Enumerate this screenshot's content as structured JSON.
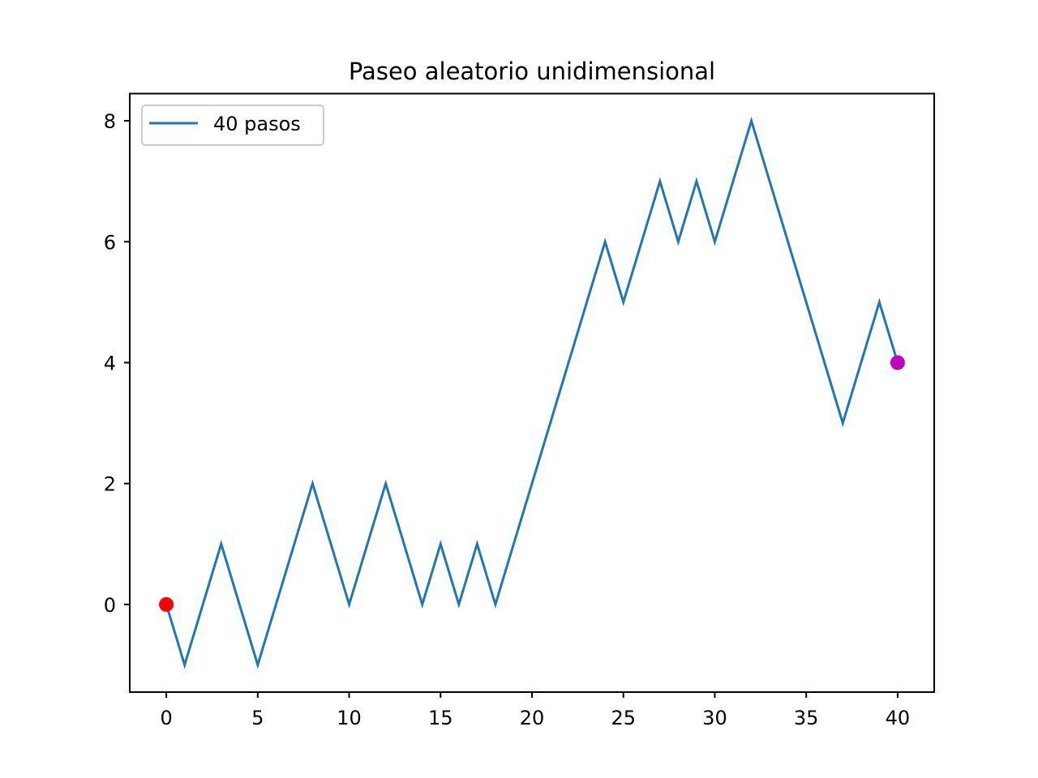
{
  "chart_data": {
    "type": "line",
    "title": "Paseo aleatorio unidimensional",
    "xlabel": "",
    "ylabel": "",
    "xlim": [
      -2,
      42
    ],
    "ylim": [
      -1.45,
      8.45
    ],
    "x_ticks": [
      0,
      5,
      10,
      15,
      20,
      25,
      30,
      35,
      40
    ],
    "y_ticks": [
      0,
      2,
      4,
      6,
      8
    ],
    "grid": false,
    "legend_position": "top-left",
    "series": [
      {
        "name": "40 pasos",
        "color": "#1f77b4",
        "x": [
          0,
          1,
          2,
          3,
          4,
          5,
          6,
          7,
          8,
          9,
          10,
          11,
          12,
          13,
          14,
          15,
          16,
          17,
          18,
          19,
          20,
          21,
          22,
          23,
          24,
          25,
          26,
          27,
          28,
          29,
          30,
          31,
          32,
          33,
          34,
          35,
          36,
          37,
          38,
          39,
          40
        ],
        "y": [
          0,
          -1,
          0,
          1,
          0,
          -1,
          0,
          1,
          2,
          1,
          0,
          1,
          2,
          1,
          0,
          1,
          0,
          1,
          0,
          1,
          2,
          3,
          4,
          5,
          6,
          5,
          6,
          7,
          6,
          7,
          6,
          7,
          8,
          7,
          6,
          5,
          4,
          3,
          4,
          5,
          4
        ]
      }
    ],
    "markers": [
      {
        "name": "start",
        "x": 0,
        "y": 0,
        "color": "#ff0000"
      },
      {
        "name": "end",
        "x": 40,
        "y": 4,
        "color": "#bf00bf"
      }
    ]
  }
}
